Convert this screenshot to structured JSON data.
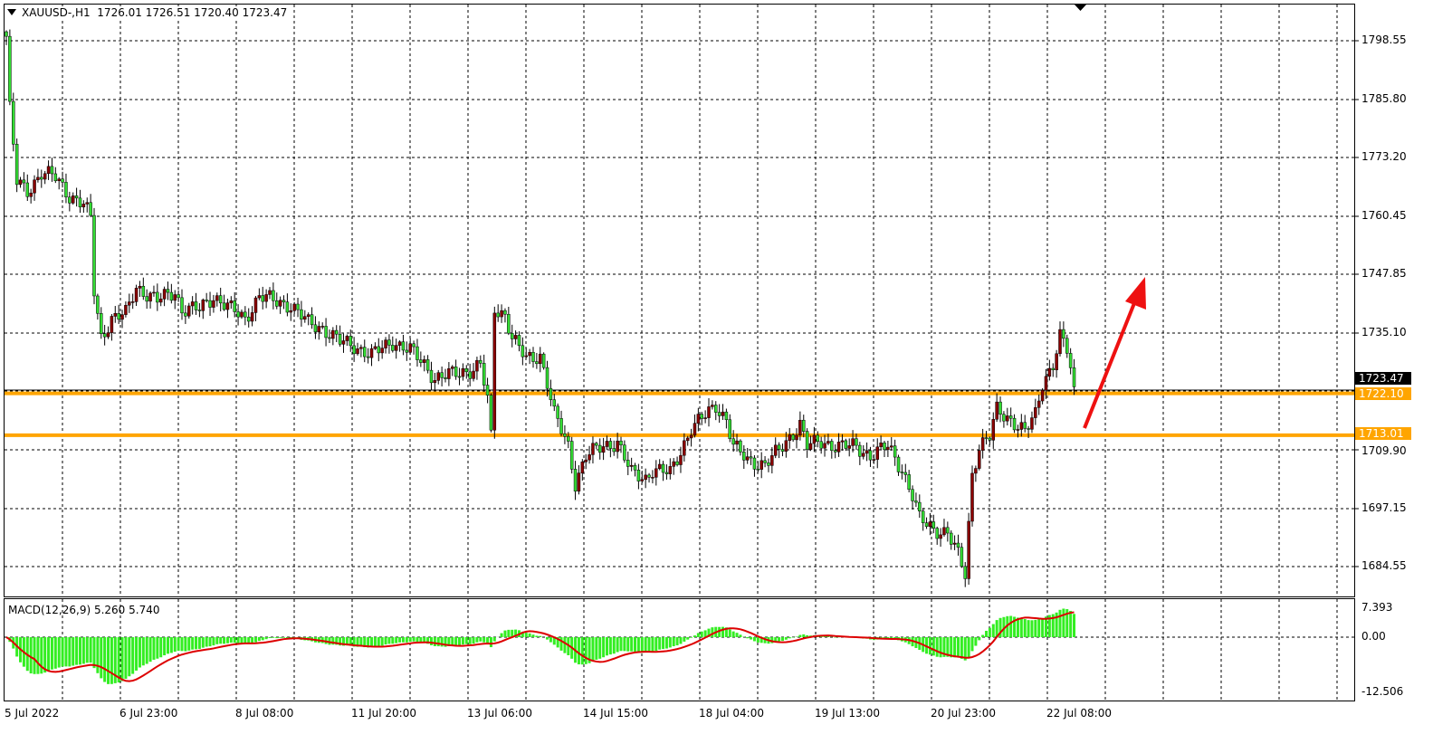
{
  "header": {
    "symbol": "XAUUSD-,H1",
    "ohlc": "1726.01 1726.51 1720.40 1723.47"
  },
  "price_axis": [
    "1798.55",
    "1785.80",
    "1773.20",
    "1760.45",
    "1747.85",
    "1735.10",
    "1709.90",
    "1697.15",
    "1684.55"
  ],
  "current_price": "1723.47",
  "levels": [
    {
      "price": 1722.1,
      "label": "1722.10"
    },
    {
      "price": 1713.01,
      "label": "1713.01"
    }
  ],
  "time_axis": [
    "5 Jul 2022",
    "6 Jul 23:00",
    "8 Jul 08:00",
    "11 Jul 20:00",
    "13 Jul 06:00",
    "14 Jul 15:00",
    "18 Jul 04:00",
    "19 Jul 13:00",
    "20 Jul 23:00",
    "22 Jul 08:00"
  ],
  "macd": {
    "label": "MACD(12,26,9) 5.260 5.740",
    "axis": [
      "7.393",
      "0.00",
      "-12.506"
    ],
    "fast": 12,
    "slow": 26,
    "signal": 9
  },
  "colors": {
    "bull": "#8b0000",
    "bear": "#33dd33",
    "level": "#ffa500",
    "arrow": "#ee1111",
    "macd_hist": "#33ee22",
    "macd_signal": "#dd0000"
  },
  "chart_data": {
    "type": "candlestick",
    "timeframe": "H1",
    "ylim": [
      1677.4,
      1806.4
    ],
    "grid": true,
    "close_keypoints": [
      [
        0,
        1799.5
      ],
      [
        1,
        1783.7
      ],
      [
        3,
        1767.9
      ],
      [
        6,
        1766.0
      ],
      [
        10,
        1769.9
      ],
      [
        14,
        1768.9
      ],
      [
        18,
        1765.0
      ],
      [
        22,
        1763.0
      ],
      [
        24,
        1760.0
      ],
      [
        25,
        1744.2
      ],
      [
        27,
        1734.3
      ],
      [
        30,
        1738.3
      ],
      [
        34,
        1739.3
      ],
      [
        37,
        1745.2
      ],
      [
        43,
        1742.2
      ],
      [
        48,
        1744.2
      ],
      [
        50,
        1740.3
      ],
      [
        55,
        1740.3
      ],
      [
        59,
        1743.2
      ],
      [
        64,
        1740.3
      ],
      [
        68,
        1738.3
      ],
      [
        72,
        1743.2
      ],
      [
        76,
        1742.2
      ],
      [
        81,
        1741.2
      ],
      [
        86,
        1737.3
      ],
      [
        90,
        1736.3
      ],
      [
        95,
        1733.3
      ],
      [
        99,
        1732.4
      ],
      [
        104,
        1730.4
      ],
      [
        110,
        1733.3
      ],
      [
        115,
        1731.4
      ],
      [
        119,
        1728.4
      ],
      [
        122,
        1725.4
      ],
      [
        128,
        1726.4
      ],
      [
        133,
        1727.4
      ],
      [
        135,
        1728.4
      ],
      [
        137,
        1720.5
      ],
      [
        138,
        1712.6
      ],
      [
        139,
        1740.3
      ],
      [
        142,
        1739.3
      ],
      [
        144,
        1734.3
      ],
      [
        148,
        1729.4
      ],
      [
        152,
        1730.4
      ],
      [
        154,
        1724.5
      ],
      [
        156,
        1717.5
      ],
      [
        160,
        1710.6
      ],
      [
        162,
        1702.7
      ],
      [
        165,
        1708.6
      ],
      [
        170,
        1710.6
      ],
      [
        174,
        1711.6
      ],
      [
        178,
        1704.7
      ],
      [
        182,
        1703.7
      ],
      [
        184,
        1705.7
      ],
      [
        189,
        1704.7
      ],
      [
        192,
        1709.6
      ],
      [
        195,
        1714.6
      ],
      [
        198,
        1716.5
      ],
      [
        202,
        1719.5
      ],
      [
        205,
        1716.5
      ],
      [
        207,
        1710.6
      ],
      [
        211,
        1707.6
      ],
      [
        216,
        1706.7
      ],
      [
        220,
        1709.6
      ],
      [
        226,
        1715.5
      ],
      [
        228,
        1710.6
      ],
      [
        232,
        1711.6
      ],
      [
        237,
        1710.6
      ],
      [
        242,
        1710.6
      ],
      [
        246,
        1708.6
      ],
      [
        251,
        1710.6
      ],
      [
        255,
        1705.7
      ],
      [
        258,
        1699.8
      ],
      [
        260,
        1694.8
      ],
      [
        264,
        1692.8
      ],
      [
        268,
        1691.8
      ],
      [
        271,
        1686.9
      ],
      [
        273,
        1682.9
      ],
      [
        275,
        1704.7
      ],
      [
        277,
        1710.6
      ],
      [
        280,
        1712.6
      ],
      [
        282,
        1718.5
      ],
      [
        286,
        1716.5
      ],
      [
        290,
        1713.6
      ],
      [
        293,
        1717.5
      ],
      [
        295,
        1724.5
      ],
      [
        298,
        1728.4
      ],
      [
        300,
        1734.3
      ],
      [
        302,
        1731.4
      ],
      [
        304,
        1723.5
      ]
    ]
  }
}
